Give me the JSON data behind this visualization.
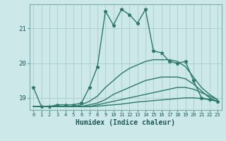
{
  "xlabel": "Humidex (Indice chaleur)",
  "ylabel": "",
  "bg_color": "#cce8e8",
  "grid_color": "#aacccc",
  "line_color": "#2a7a6a",
  "xlim": [
    -0.5,
    23.5
  ],
  "ylim": [
    18.65,
    21.7
  ],
  "yticks": [
    19,
    20,
    21
  ],
  "xticks": [
    0,
    1,
    2,
    3,
    4,
    5,
    6,
    7,
    8,
    9,
    10,
    11,
    12,
    13,
    14,
    15,
    16,
    17,
    18,
    19,
    20,
    21,
    22,
    23
  ],
  "series": [
    {
      "x": [
        0,
        1,
        2,
        3,
        4,
        5,
        6,
        7,
        8,
        9,
        10,
        11,
        12,
        13,
        14,
        15,
        16,
        17,
        18,
        19,
        20,
        21,
        22,
        23
      ],
      "y": [
        19.3,
        18.75,
        18.75,
        18.8,
        18.8,
        18.8,
        18.85,
        19.3,
        19.9,
        21.5,
        21.1,
        21.55,
        21.4,
        21.15,
        21.55,
        20.35,
        20.3,
        20.05,
        20.0,
        20.05,
        19.5,
        19.0,
        18.95,
        18.9
      ],
      "marker": true,
      "linewidth": 1.0
    },
    {
      "x": [
        0,
        1,
        2,
        3,
        4,
        5,
        6,
        7,
        8,
        9,
        10,
        11,
        12,
        13,
        14,
        15,
        16,
        17,
        18,
        19,
        20,
        21,
        22,
        23
      ],
      "y": [
        18.75,
        18.75,
        18.75,
        18.75,
        18.75,
        18.75,
        18.8,
        18.9,
        19.05,
        19.3,
        19.5,
        19.7,
        19.85,
        19.95,
        20.05,
        20.1,
        20.1,
        20.1,
        20.05,
        19.9,
        19.6,
        19.3,
        19.1,
        18.95
      ],
      "marker": false,
      "linewidth": 1.0
    },
    {
      "x": [
        0,
        1,
        2,
        3,
        4,
        5,
        6,
        7,
        8,
        9,
        10,
        11,
        12,
        13,
        14,
        15,
        16,
        17,
        18,
        19,
        20,
        21,
        22,
        23
      ],
      "y": [
        18.75,
        18.75,
        18.75,
        18.75,
        18.75,
        18.75,
        18.75,
        18.8,
        18.85,
        18.95,
        19.1,
        19.2,
        19.3,
        19.4,
        19.5,
        19.55,
        19.6,
        19.6,
        19.6,
        19.55,
        19.4,
        19.2,
        19.0,
        18.9
      ],
      "marker": false,
      "linewidth": 1.0
    },
    {
      "x": [
        0,
        1,
        2,
        3,
        4,
        5,
        6,
        7,
        8,
        9,
        10,
        11,
        12,
        13,
        14,
        15,
        16,
        17,
        18,
        19,
        20,
        21,
        22,
        23
      ],
      "y": [
        18.75,
        18.75,
        18.75,
        18.75,
        18.75,
        18.75,
        18.75,
        18.75,
        18.8,
        18.85,
        18.9,
        18.95,
        19.0,
        19.05,
        19.1,
        19.15,
        19.2,
        19.25,
        19.3,
        19.3,
        19.25,
        19.15,
        19.05,
        18.95
      ],
      "marker": false,
      "linewidth": 1.0
    },
    {
      "x": [
        0,
        1,
        2,
        3,
        4,
        5,
        6,
        7,
        8,
        9,
        10,
        11,
        12,
        13,
        14,
        15,
        16,
        17,
        18,
        19,
        20,
        21,
        22,
        23
      ],
      "y": [
        18.75,
        18.75,
        18.75,
        18.75,
        18.75,
        18.75,
        18.75,
        18.75,
        18.76,
        18.78,
        18.8,
        18.82,
        18.85,
        18.88,
        18.9,
        18.92,
        18.94,
        18.96,
        18.98,
        19.0,
        19.0,
        18.98,
        18.95,
        18.9
      ],
      "marker": false,
      "linewidth": 1.0
    }
  ]
}
